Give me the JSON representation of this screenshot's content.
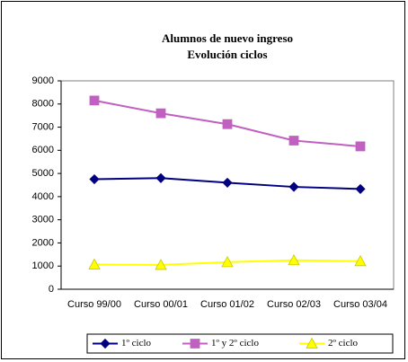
{
  "chart_data": {
    "type": "line",
    "title": "Alumnos de nuevo ingreso",
    "subtitle": "Evolución ciclos",
    "categories": [
      "Curso 99/00",
      "Curso 00/01",
      "Curso 01/02",
      "Curso 02/03",
      "Curso 03/04"
    ],
    "series": [
      {
        "name": "1º ciclo",
        "color": "#000080",
        "marker": "diamond",
        "values": [
          4750,
          4800,
          4600,
          4420,
          4330
        ]
      },
      {
        "name": "1º y 2º ciclo",
        "color": "#c060c0",
        "marker": "square",
        "values": [
          8150,
          7600,
          7130,
          6420,
          6170
        ]
      },
      {
        "name": "2º ciclo",
        "color": "#ffff00",
        "marker": "triangle",
        "values": [
          1070,
          1050,
          1170,
          1250,
          1210
        ]
      }
    ],
    "ylim": [
      0,
      9000
    ],
    "yticks": [
      0,
      1000,
      2000,
      3000,
      4000,
      5000,
      6000,
      7000,
      8000,
      9000
    ],
    "grid": false,
    "legend": "bottom"
  }
}
